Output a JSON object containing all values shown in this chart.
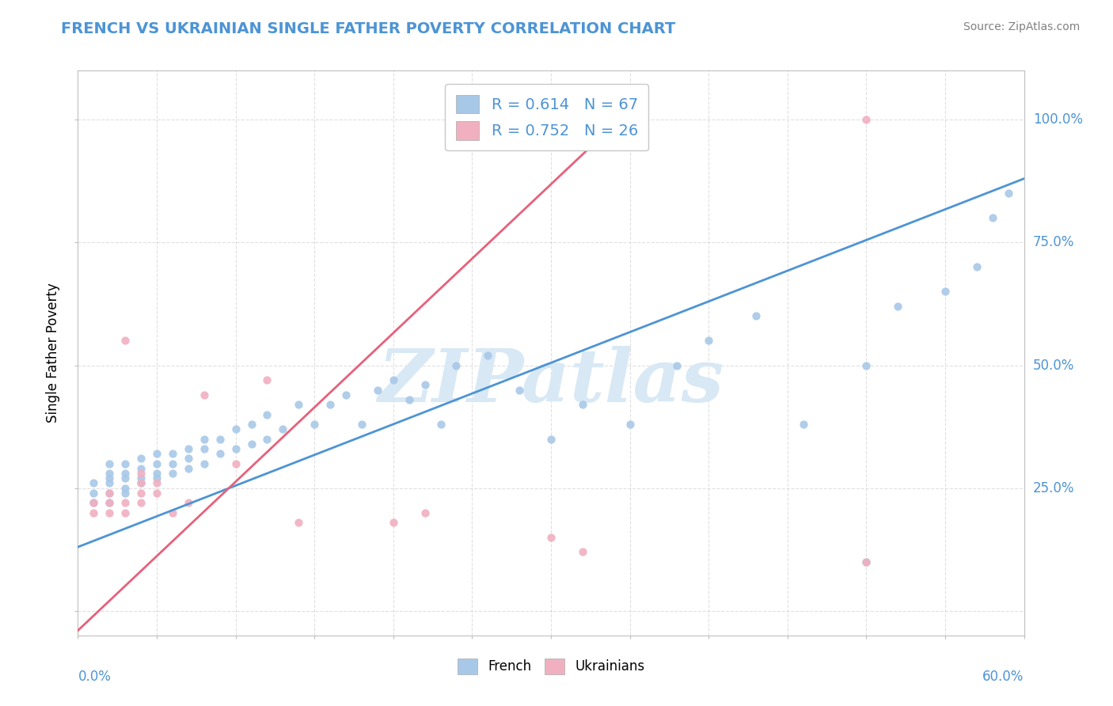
{
  "title": "FRENCH VS UKRAINIAN SINGLE FATHER POVERTY CORRELATION CHART",
  "source": "Source: ZipAtlas.com",
  "ylabel": "Single Father Poverty",
  "yticks": [
    0.0,
    0.25,
    0.5,
    0.75,
    1.0
  ],
  "ytick_labels": [
    "",
    "25.0%",
    "50.0%",
    "75.0%",
    "100.0%"
  ],
  "xlim": [
    0.0,
    0.6
  ],
  "ylim": [
    -0.05,
    1.1
  ],
  "french_R": 0.614,
  "french_N": 67,
  "ukrainian_R": 0.752,
  "ukrainian_N": 26,
  "french_color": "#a8c8e8",
  "ukrainian_color": "#f0b0c0",
  "french_line_color": "#4d94d5",
  "ukrainian_line_color": "#e8607a",
  "title_color": "#4d94d5",
  "watermark_color": "#d8e8f5",
  "watermark_text": "ZIPatlas",
  "french_line_x0": 0.0,
  "french_line_y0": 0.13,
  "french_line_x1": 0.6,
  "french_line_y1": 0.88,
  "ukr_line_x0": 0.0,
  "ukr_line_y0": -0.04,
  "ukr_line_x1": 0.35,
  "ukr_line_y1": 1.02,
  "french_x": [
    0.01,
    0.01,
    0.01,
    0.02,
    0.02,
    0.02,
    0.02,
    0.02,
    0.02,
    0.03,
    0.03,
    0.03,
    0.03,
    0.03,
    0.04,
    0.04,
    0.04,
    0.04,
    0.05,
    0.05,
    0.05,
    0.05,
    0.06,
    0.06,
    0.06,
    0.07,
    0.07,
    0.07,
    0.08,
    0.08,
    0.08,
    0.09,
    0.09,
    0.1,
    0.1,
    0.11,
    0.11,
    0.12,
    0.12,
    0.13,
    0.14,
    0.15,
    0.16,
    0.17,
    0.18,
    0.19,
    0.2,
    0.21,
    0.22,
    0.23,
    0.24,
    0.26,
    0.28,
    0.3,
    0.32,
    0.35,
    0.38,
    0.4,
    0.43,
    0.46,
    0.5,
    0.52,
    0.55,
    0.57,
    0.58,
    0.59,
    0.5
  ],
  "french_y": [
    0.22,
    0.24,
    0.26,
    0.22,
    0.24,
    0.26,
    0.27,
    0.28,
    0.3,
    0.24,
    0.25,
    0.27,
    0.28,
    0.3,
    0.26,
    0.27,
    0.29,
    0.31,
    0.27,
    0.28,
    0.3,
    0.32,
    0.28,
    0.3,
    0.32,
    0.29,
    0.31,
    0.33,
    0.3,
    0.33,
    0.35,
    0.32,
    0.35,
    0.33,
    0.37,
    0.34,
    0.38,
    0.35,
    0.4,
    0.37,
    0.42,
    0.38,
    0.42,
    0.44,
    0.38,
    0.45,
    0.47,
    0.43,
    0.46,
    0.38,
    0.5,
    0.52,
    0.45,
    0.35,
    0.42,
    0.38,
    0.5,
    0.55,
    0.6,
    0.38,
    0.5,
    0.62,
    0.65,
    0.7,
    0.8,
    0.85,
    0.1
  ],
  "ukrainian_x": [
    0.01,
    0.01,
    0.02,
    0.02,
    0.02,
    0.03,
    0.03,
    0.03,
    0.04,
    0.04,
    0.04,
    0.04,
    0.05,
    0.05,
    0.06,
    0.07,
    0.08,
    0.1,
    0.12,
    0.14,
    0.2,
    0.22,
    0.3,
    0.32,
    0.5,
    0.5
  ],
  "ukrainian_y": [
    0.2,
    0.22,
    0.2,
    0.22,
    0.24,
    0.2,
    0.22,
    0.55,
    0.22,
    0.24,
    0.26,
    0.28,
    0.24,
    0.26,
    0.2,
    0.22,
    0.44,
    0.3,
    0.47,
    0.18,
    0.18,
    0.2,
    0.15,
    0.12,
    0.1,
    1.0
  ]
}
